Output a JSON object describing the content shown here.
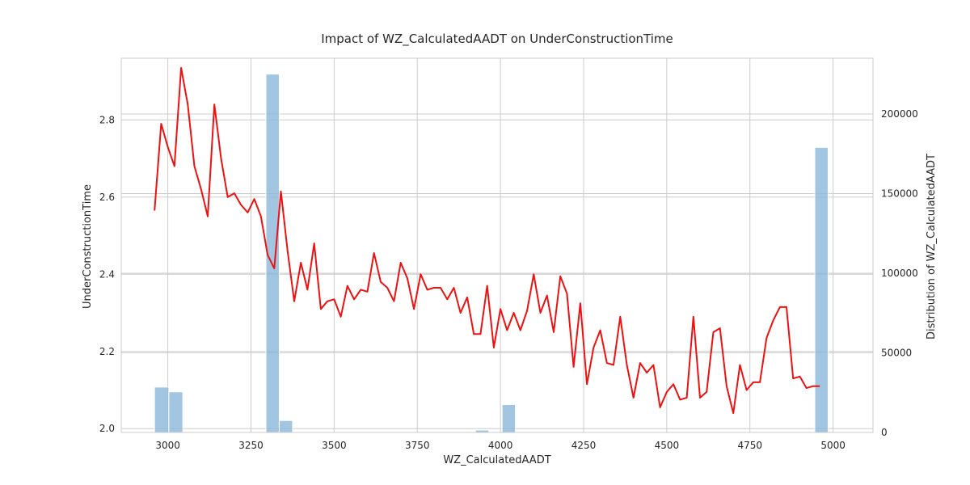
{
  "chart_data": {
    "type": "line",
    "title": "Impact of WZ_CalculatedAADT on UnderConstructionTime",
    "xlabel": "WZ_CalculatedAADT",
    "ylabel": "UnderConstructionTime",
    "y2label": "Distribution of WZ_CalculatedAADT",
    "xlim": [
      2860,
      5120
    ],
    "ylim": [
      1.99,
      2.96
    ],
    "y2lim": [
      0,
      235000
    ],
    "xticks": [
      3000,
      3250,
      3500,
      3750,
      4000,
      4250,
      4500,
      4750,
      5000
    ],
    "yticks": [
      2.0,
      2.2,
      2.4,
      2.6,
      2.8
    ],
    "y2ticks": [
      0,
      50000,
      100000,
      150000,
      200000
    ],
    "grid": true,
    "line_color": "#ee1111",
    "bar_color": "#8bb8d9",
    "series": [
      {
        "x": [
          2960,
          2980,
          3000,
          3020,
          3040,
          3060,
          3080,
          3100,
          3120,
          3140,
          3160,
          3180,
          3200,
          3220,
          3240,
          3260,
          3280,
          3300,
          3320,
          3340,
          3360,
          3380,
          3400,
          3420,
          3440,
          3460,
          3480,
          3500,
          3520,
          3540,
          3560,
          3580,
          3600,
          3620,
          3640,
          3660,
          3680,
          3700,
          3720,
          3740,
          3760,
          3780,
          3800,
          3820,
          3840,
          3860,
          3880,
          3900,
          3920,
          3940,
          3960,
          3980,
          4000,
          4020,
          4040,
          4060,
          4080,
          4100,
          4120,
          4140,
          4160,
          4180,
          4200,
          4220,
          4240,
          4260,
          4280,
          4300,
          4320,
          4340,
          4360,
          4380,
          4400,
          4420,
          4440,
          4460,
          4480,
          4500,
          4520,
          4540,
          4560,
          4580,
          4600,
          4620,
          4640,
          4660,
          4680,
          4700,
          4720,
          4740,
          4760,
          4780,
          4800,
          4820,
          4840,
          4860,
          4880,
          4900,
          4920,
          4940,
          4960
        ],
        "values": [
          2.565,
          2.79,
          2.73,
          2.68,
          2.935,
          2.84,
          2.68,
          2.62,
          2.55,
          2.84,
          2.7,
          2.6,
          2.61,
          2.58,
          2.56,
          2.595,
          2.55,
          2.45,
          2.415,
          2.615,
          2.46,
          2.33,
          2.43,
          2.36,
          2.48,
          2.31,
          2.33,
          2.335,
          2.29,
          2.37,
          2.335,
          2.36,
          2.355,
          2.455,
          2.38,
          2.365,
          2.33,
          2.43,
          2.39,
          2.31,
          2.4,
          2.36,
          2.365,
          2.365,
          2.335,
          2.365,
          2.3,
          2.34,
          2.245,
          2.245,
          2.37,
          2.21,
          2.31,
          2.255,
          2.3,
          2.255,
          2.305,
          2.4,
          2.3,
          2.345,
          2.25,
          2.395,
          2.35,
          2.16,
          2.325,
          2.115,
          2.21,
          2.255,
          2.17,
          2.165,
          2.29,
          2.165,
          2.08,
          2.17,
          2.145,
          2.165,
          2.055,
          2.095,
          2.115,
          2.075,
          2.08,
          2.29,
          2.08,
          2.095,
          2.25,
          2.26,
          2.11,
          2.04,
          2.165,
          2.1,
          2.12,
          2.12,
          2.235,
          2.28,
          2.315,
          2.315,
          2.13,
          2.135,
          2.105,
          2.11,
          2.11
        ]
      }
    ],
    "histogram": {
      "edges": [
        2960,
        3045,
        3295,
        3375,
        3925,
        3965,
        4005,
        4045,
        4945,
        4985
      ],
      "bins": [
        {
          "x0": 2960,
          "x1": 3003,
          "count": 28500
        },
        {
          "x0": 3003,
          "x1": 3045,
          "count": 25500
        },
        {
          "x0": 3295,
          "x1": 3335,
          "count": 225000
        },
        {
          "x0": 3335,
          "x1": 3375,
          "count": 7500
        },
        {
          "x0": 3925,
          "x1": 3965,
          "count": 1500
        },
        {
          "x0": 4005,
          "x1": 4045,
          "count": 17500
        },
        {
          "x0": 4945,
          "x1": 4985,
          "count": 179000
        }
      ]
    }
  }
}
